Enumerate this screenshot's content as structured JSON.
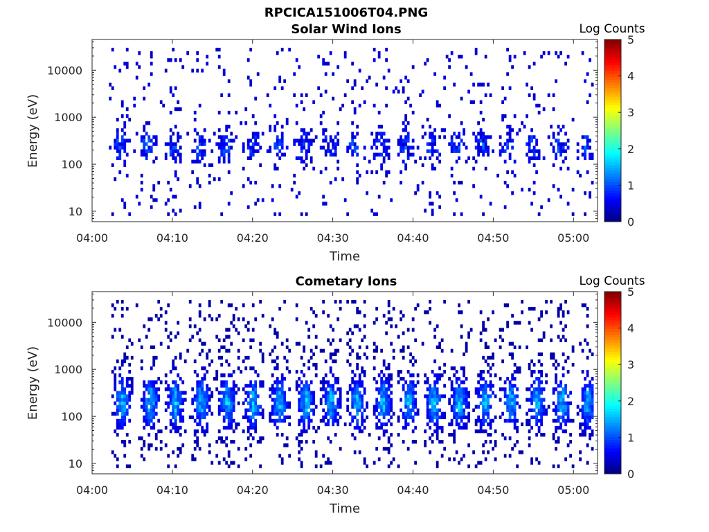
{
  "figure_title": "RPCICA151006T04.PNG",
  "chart_data": [
    {
      "type": "heatmap",
      "title": "Solar Wind Ions",
      "xlabel": "Time",
      "ylabel": "Energy (eV)",
      "x_tick_labels": [
        "04:00",
        "04:10",
        "04:20",
        "04:30",
        "04:40",
        "04:50",
        "05:00"
      ],
      "x_ticks_minutes": [
        0,
        10,
        20,
        30,
        40,
        50,
        60
      ],
      "xlim_minutes": [
        0,
        63
      ],
      "y_tick_labels": [
        "10",
        "100",
        "1000",
        "10000"
      ],
      "y_ticks": [
        10,
        100,
        1000,
        10000
      ],
      "yscale": "log",
      "ylim": [
        6,
        45000
      ],
      "data_start_minute": 2.1,
      "data_end_minute": 62.5,
      "colorbar": {
        "label": "Log Counts",
        "tick_labels": [
          "0",
          "1",
          "2",
          "3",
          "4",
          "5"
        ],
        "range": [
          0,
          5
        ],
        "colormap": "jet"
      },
      "bursts_minutes": [
        3.5,
        6.9,
        10.2,
        13.5,
        16.7,
        20.0,
        23.3,
        26.4,
        29.6,
        32.7,
        35.9,
        39.1,
        42.3,
        45.6,
        48.6,
        51.8,
        55.0,
        58.2,
        61.6
      ],
      "typical_log_counts": 0.3,
      "peak_log_counts": 1.1,
      "typical_energy_eV": 250
    },
    {
      "type": "heatmap",
      "title": "Cometary Ions",
      "xlabel": "Time",
      "ylabel": "Energy (eV)",
      "x_tick_labels": [
        "04:00",
        "04:10",
        "04:20",
        "04:30",
        "04:40",
        "04:50",
        "05:00"
      ],
      "x_ticks_minutes": [
        0,
        10,
        20,
        30,
        40,
        50,
        60
      ],
      "xlim_minutes": [
        0,
        63
      ],
      "y_tick_labels": [
        "10",
        "100",
        "1000",
        "10000"
      ],
      "y_ticks": [
        10,
        100,
        1000,
        10000
      ],
      "yscale": "log",
      "ylim": [
        6,
        45000
      ],
      "data_start_minute": 2.1,
      "data_end_minute": 62.5,
      "colorbar": {
        "label": "Log Counts",
        "tick_labels": [
          "0",
          "1",
          "2",
          "3",
          "4",
          "5"
        ],
        "range": [
          0,
          5
        ],
        "colormap": "jet"
      },
      "bursts_minutes": [
        3.8,
        7.3,
        10.4,
        13.6,
        16.9,
        20.1,
        23.4,
        26.7,
        29.8,
        33.0,
        36.3,
        39.5,
        42.7,
        45.8,
        49.0,
        52.2,
        55.5,
        58.6,
        61.8
      ],
      "typical_log_counts": 0.8,
      "peak_log_counts": 2.0,
      "typical_energy_eV": 200
    }
  ]
}
